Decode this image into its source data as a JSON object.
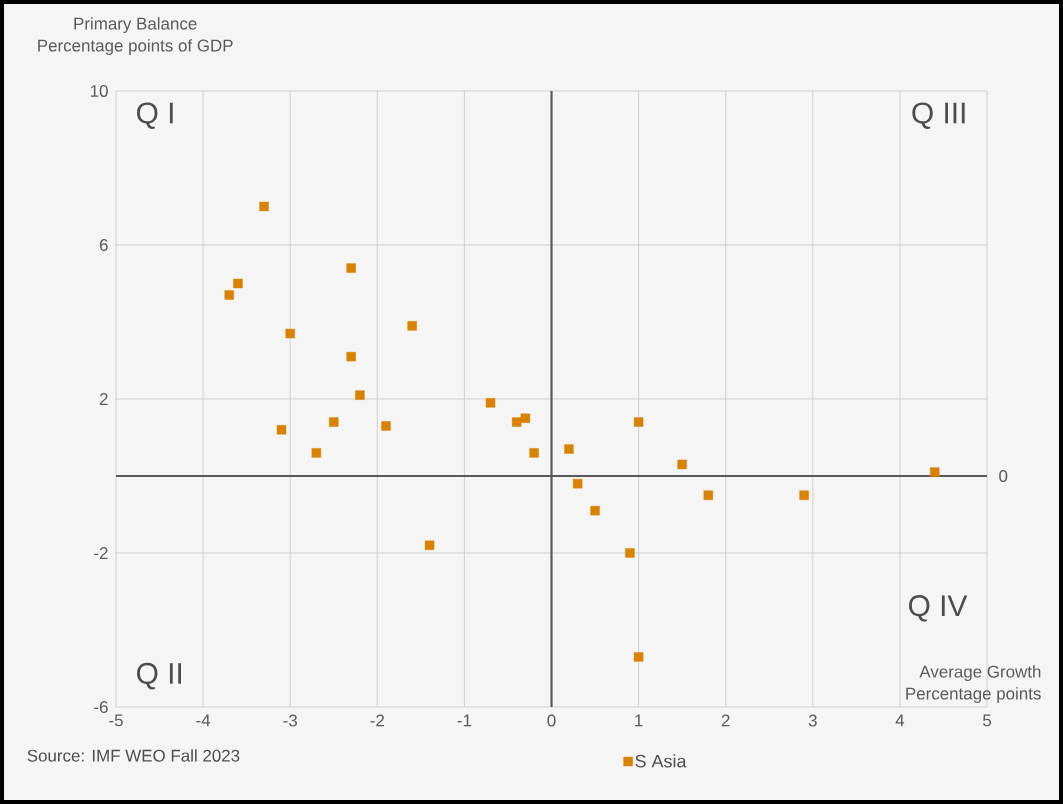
{
  "chart_data": {
    "type": "scatter",
    "ylabel": "Primary Balance\nPercentage points of GDP",
    "xlabel": "Average Growth\nPercentage points",
    "x": [
      -3.3,
      -2.3,
      -3.6,
      -3.7,
      -3.0,
      -1.6,
      -2.3,
      -2.2,
      -3.1,
      -2.5,
      -1.9,
      -2.7,
      -1.4,
      -0.7,
      -0.4,
      -0.3,
      -0.2,
      0.2,
      0.3,
      0.5,
      1.0,
      0.9,
      1.0,
      1.5,
      1.8,
      2.9,
      4.4
    ],
    "series": [
      {
        "name": "S Asia",
        "color": "#d98200",
        "values": [
          7.0,
          5.4,
          5.0,
          4.7,
          3.7,
          3.9,
          3.1,
          2.1,
          1.2,
          1.4,
          1.3,
          0.6,
          -1.8,
          1.9,
          1.4,
          1.5,
          0.6,
          0.7,
          -0.2,
          -0.9,
          1.4,
          -2.0,
          -4.7,
          0.3,
          -0.5,
          -0.5,
          0.1
        ]
      }
    ],
    "xlim": [
      -5,
      5
    ],
    "ylim": [
      -6,
      10
    ],
    "xticks": [
      -5,
      -4,
      -3,
      -2,
      -1,
      0,
      1,
      2,
      3,
      4,
      5
    ],
    "yticks": [
      -6,
      -2,
      2,
      6,
      10
    ],
    "grid": true,
    "marker": "square",
    "legend": "bottom",
    "ref_lines": [
      {
        "axis": "y",
        "value": 0,
        "label": "0",
        "color": "#595959"
      },
      {
        "axis": "x",
        "value": 0,
        "color": "#595959"
      }
    ],
    "annotations": [
      "Q I",
      "Q II",
      "Q III",
      "Q IV",
      "Source:  IMF WEO Fall 2023"
    ]
  }
}
